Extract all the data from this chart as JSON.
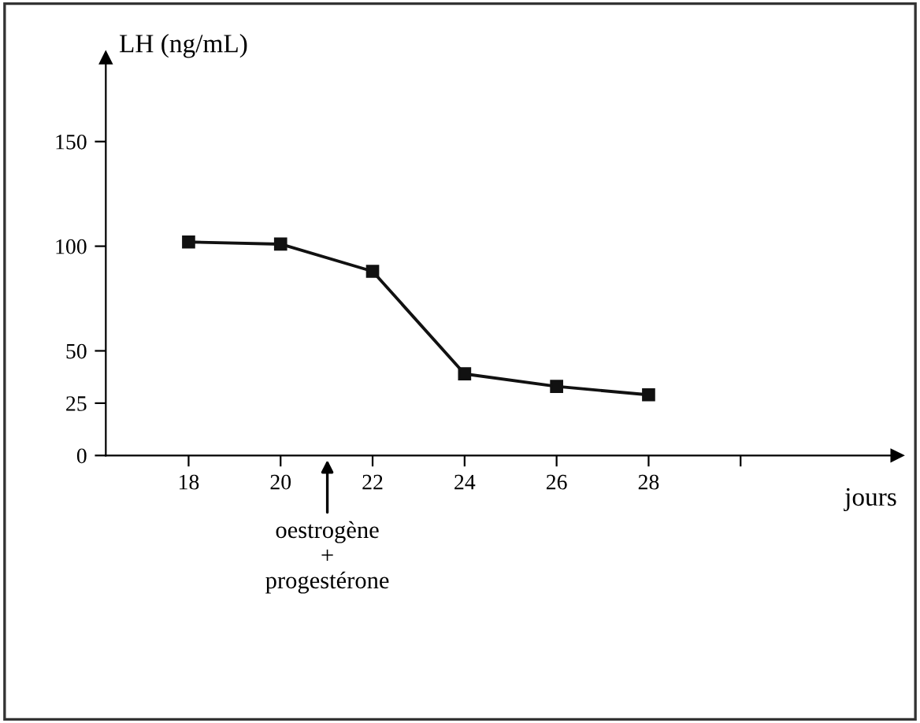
{
  "chart_data": {
    "type": "line",
    "ylabel": "LH (ng/mL)",
    "xlabel": "jours",
    "x": [
      18,
      20,
      22,
      24,
      26,
      28
    ],
    "series": [
      {
        "color": "#111111",
        "values": [
          102,
          101,
          88,
          39,
          33,
          29
        ]
      }
    ],
    "xlim": [
      16.2,
      33.4
    ],
    "ylim": [
      0,
      190
    ],
    "xticks": [
      18,
      20,
      22,
      24,
      26,
      28,
      {
        "value": 30,
        "label": null
      }
    ],
    "yticks": [
      0,
      25,
      50,
      100,
      150
    ],
    "marker": "square",
    "line_style": "solid",
    "grid": false,
    "legend": false,
    "annotations": [
      "oestrogène\n+\nprogestérone"
    ]
  }
}
